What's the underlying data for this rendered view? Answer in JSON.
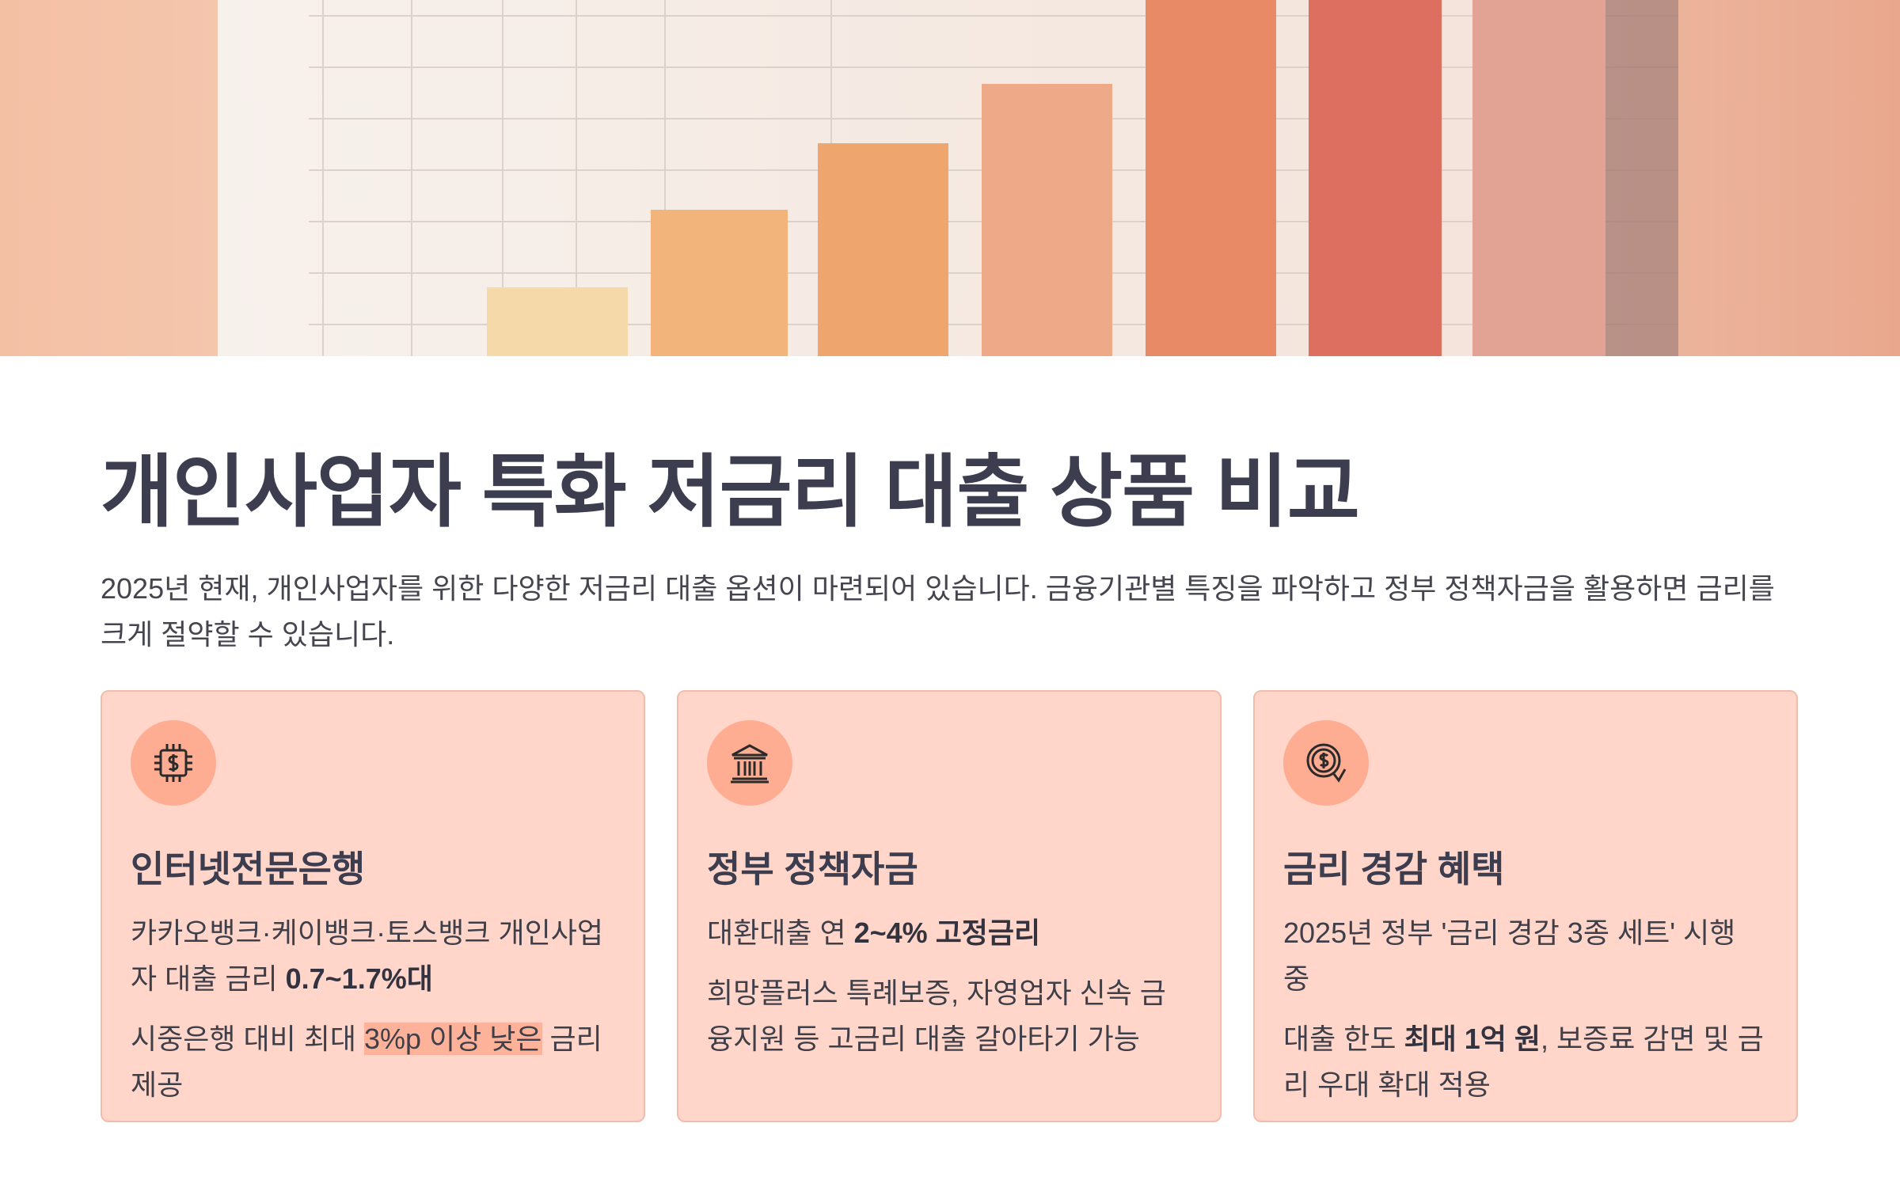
{
  "title": "개인사업자 특화 저금리 대출 상품 비교",
  "intro": "2025년 현재, 개인사업자를 위한 다양한 저금리 대출 옵션이 마련되어 있습니다. 금융기관별 특징을 파악하고 정부 정책자금을 활용하면 금리를 크게 절약할 수 있습니다.",
  "cards": [
    {
      "title": "인터넷전문은행",
      "paragraphs": [
        [
          "카카오뱅크·케이뱅크·토스뱅크 개인사업자 대출 금리 ",
          "0.7~1.7%대"
        ],
        [
          "시중은행 대비 최대 ",
          "3%p 이상 낮은",
          " 금리 제공"
        ]
      ]
    },
    {
      "title": "정부 정책자금",
      "paragraphs": [
        [
          "대환대출 연 ",
          "2~4% 고정금리"
        ],
        [
          "희망플러스 특례보증, 자영업자 신속 금융지원 등 고금리 대출 갈아타기 가능"
        ]
      ]
    },
    {
      "title": "금리 경감 혜택",
      "paragraphs": [
        [
          "2025년 정부 '금리 경감 3종 세트' 시행 중"
        ],
        [
          "대출 한도 ",
          "최대 1억 원",
          ", 보증료 감면 및 금리 우대 확대 적용"
        ]
      ]
    }
  ]
}
